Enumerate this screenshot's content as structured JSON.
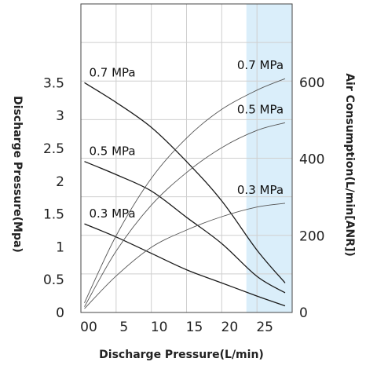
{
  "chart_data": {
    "type": "line",
    "xlabel": "Discharge Pressure(L/min)",
    "ylabel_left": "Discharge Pressure(Mpa)",
    "ylabel_right": "Air Consumption(L/min[ANR])",
    "xlim": [
      0,
      30
    ],
    "ylim_left": [
      0,
      4.7
    ],
    "ylim_right": [
      0,
      805
    ],
    "x_ticks": [
      "00",
      "5",
      "10",
      "15",
      "20",
      "25"
    ],
    "x_tick_values": [
      0,
      5,
      10,
      15,
      20,
      25
    ],
    "y_left_ticks": [
      "0",
      "0.5",
      "1",
      "1.5",
      "2",
      "2.5",
      "3",
      "3.5"
    ],
    "y_left_tick_values": [
      0,
      0.5,
      1,
      1.5,
      2,
      2.5,
      3,
      3.5
    ],
    "y_right_ticks": [
      "0",
      "200",
      "400",
      "600"
    ],
    "y_right_tick_values": [
      0,
      200,
      400,
      600
    ],
    "highlight_range_x": [
      23.5,
      30
    ],
    "grid": true,
    "series": [
      {
        "name": "0.7 MPa",
        "axis": "left",
        "color": "#1a1a1a",
        "x": [
          0.5,
          5,
          10,
          15,
          20,
          25,
          29
        ],
        "y": [
          3.5,
          3.2,
          2.82,
          2.3,
          1.7,
          0.95,
          0.45
        ]
      },
      {
        "name": "0.5 MPa",
        "axis": "left",
        "color": "#1a1a1a",
        "x": [
          0.5,
          5,
          10,
          15,
          20,
          25,
          29
        ],
        "y": [
          2.3,
          2.1,
          1.85,
          1.45,
          1.05,
          0.55,
          0.3
        ]
      },
      {
        "name": "0.3 MPa",
        "axis": "left",
        "color": "#1a1a1a",
        "x": [
          0.5,
          5,
          10,
          15,
          20,
          25,
          29
        ],
        "y": [
          1.35,
          1.15,
          0.9,
          0.65,
          0.45,
          0.25,
          0.1
        ]
      },
      {
        "name": "0.7 MPa",
        "axis": "right",
        "color": "#555555",
        "x": [
          0.5,
          5,
          10,
          15,
          20,
          25,
          29
        ],
        "y": [
          25,
          200,
          350,
          455,
          530,
          580,
          610
        ]
      },
      {
        "name": "0.5 MPa",
        "axis": "right",
        "color": "#555555",
        "x": [
          0.5,
          5,
          10,
          15,
          20,
          25,
          29
        ],
        "y": [
          15,
          160,
          280,
          365,
          430,
          475,
          495
        ]
      },
      {
        "name": "0.3 MPa",
        "axis": "right",
        "color": "#555555",
        "x": [
          0.5,
          5,
          10,
          15,
          20,
          25,
          29
        ],
        "y": [
          10,
          95,
          170,
          215,
          250,
          275,
          285
        ]
      }
    ]
  }
}
